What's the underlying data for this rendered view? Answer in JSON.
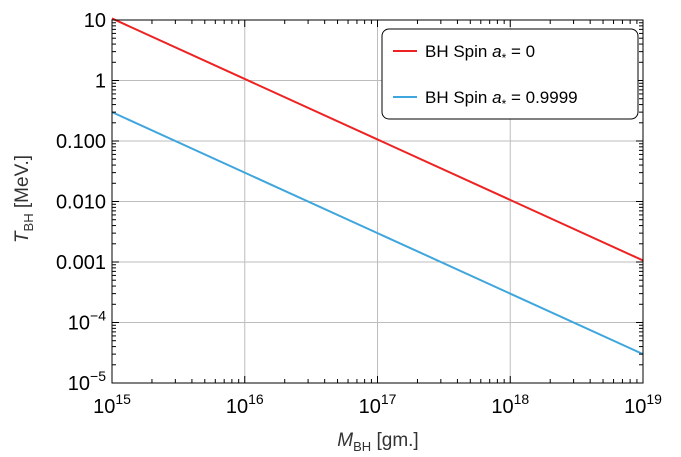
{
  "chart_data": {
    "type": "line",
    "x_scale": "log",
    "y_scale": "log",
    "xlim": [
      1000000000000000.0,
      1e+19
    ],
    "ylim": [
      1e-05,
      10
    ],
    "grid": true,
    "legend_position": "top-right",
    "xlabel": {
      "symbol": "M",
      "subscript": "BH",
      "unit": "[gm.]"
    },
    "ylabel": {
      "symbol": "T",
      "subscript": "BH",
      "unit": "[MeV.]"
    },
    "x_ticks": [
      {
        "value": 1000000000000000.0,
        "base": "10",
        "exp": "15"
      },
      {
        "value": 1e+16,
        "base": "10",
        "exp": "16"
      },
      {
        "value": 1e+17,
        "base": "10",
        "exp": "17"
      },
      {
        "value": 1e+18,
        "base": "10",
        "exp": "18"
      },
      {
        "value": 1e+19,
        "base": "10",
        "exp": "19"
      }
    ],
    "y_ticks": [
      {
        "value": 10,
        "base": "10",
        "exp": ""
      },
      {
        "value": 1,
        "base": "1",
        "exp": ""
      },
      {
        "value": 0.1,
        "base": "0.100",
        "exp": ""
      },
      {
        "value": 0.01,
        "base": "0.010",
        "exp": ""
      },
      {
        "value": 0.001,
        "base": "0.001",
        "exp": ""
      },
      {
        "value": 0.0001,
        "base": "10",
        "exp": "−4"
      },
      {
        "value": 1e-05,
        "base": "10",
        "exp": "−5"
      }
    ],
    "series": [
      {
        "legend_prefix": "BH  Spin",
        "legend_var": "a",
        "legend_sub": "*",
        "legend_value": " = 0",
        "color": "#ee2222",
        "x": [
          1000000000000000.0,
          1e+19
        ],
        "y": [
          10.6,
          0.00106
        ]
      },
      {
        "legend_prefix": "BH  Spin",
        "legend_var": "a",
        "legend_sub": "*",
        "legend_value": " = 0.9999",
        "color": "#3fa6dd",
        "x": [
          1000000000000000.0,
          1e+19
        ],
        "y": [
          0.3,
          3e-05
        ]
      }
    ]
  }
}
